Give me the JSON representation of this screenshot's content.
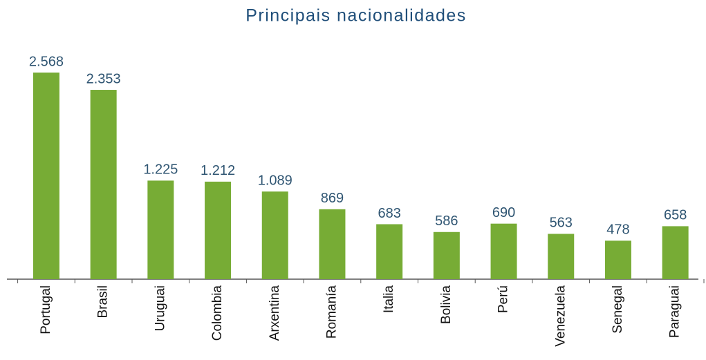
{
  "chart_data": {
    "type": "bar",
    "title": "Principais nacionalidades",
    "categories": [
      "Portugal",
      "Brasil",
      "Uruguai",
      "Colombia",
      "Arxentina",
      "Romanía",
      "Italia",
      "Bolivia",
      "Perú",
      "Venezuela",
      "Senegal",
      "Paraguai"
    ],
    "values": [
      2568,
      2353,
      1225,
      1212,
      1089,
      869,
      683,
      586,
      690,
      563,
      478,
      658
    ],
    "value_labels": [
      "2.568",
      "2.353",
      "1.225",
      "1.212",
      "1.089",
      "869",
      "683",
      "586",
      "690",
      "563",
      "478",
      "658"
    ],
    "color": "#77ac35",
    "ylim": [
      0,
      2800
    ]
  }
}
